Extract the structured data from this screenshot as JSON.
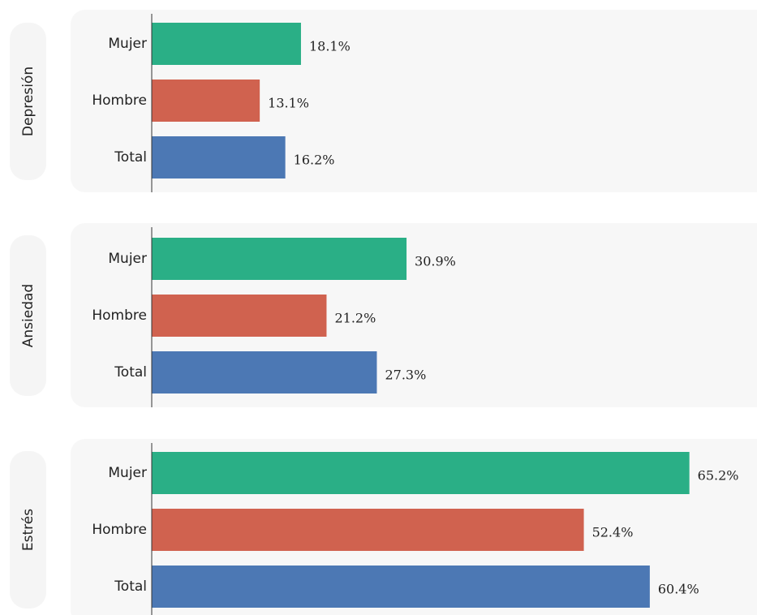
{
  "chart_data": [
    {
      "type": "bar",
      "horizontal": true,
      "title": "Depresión",
      "categories": [
        "Mujer",
        "Hombre",
        "Total"
      ],
      "values": [
        18.1,
        13.1,
        16.2
      ],
      "value_labels": [
        "18.1%",
        "13.1%",
        "16.2%"
      ],
      "colors": [
        "#2aaf86",
        "#d0624f",
        "#4c78b4"
      ],
      "xlim": [
        0,
        73.4
      ]
    },
    {
      "type": "bar",
      "horizontal": true,
      "title": "Ansiedad",
      "categories": [
        "Mujer",
        "Hombre",
        "Total"
      ],
      "values": [
        30.9,
        21.2,
        27.3
      ],
      "value_labels": [
        "30.9%",
        "21.2%",
        "27.3%"
      ],
      "colors": [
        "#2aaf86",
        "#d0624f",
        "#4c78b4"
      ],
      "xlim": [
        0,
        73.4
      ]
    },
    {
      "type": "bar",
      "horizontal": true,
      "title": "Estrés",
      "categories": [
        "Mujer",
        "Hombre",
        "Total"
      ],
      "values": [
        65.2,
        52.4,
        60.4
      ],
      "value_labels": [
        "65.2%",
        "52.4%",
        "60.4%"
      ],
      "colors": [
        "#2aaf86",
        "#d0624f",
        "#4c78b4"
      ],
      "xlim": [
        0,
        73.4
      ]
    }
  ]
}
